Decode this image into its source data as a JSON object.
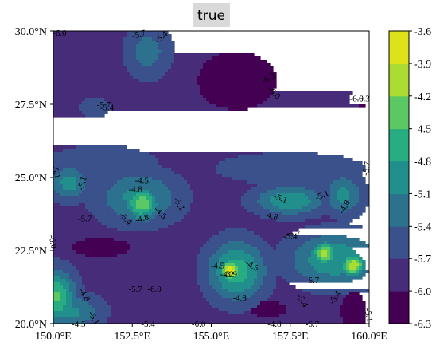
{
  "chart_data": {
    "type": "heatmap",
    "subtype": "filled-contour-map",
    "title": "true",
    "xlabel": "",
    "ylabel": "",
    "xlim": [
      150.0,
      160.0
    ],
    "ylim": [
      20.0,
      30.0
    ],
    "x_ticks": [
      150.0,
      152.5,
      155.0,
      157.5,
      160.0
    ],
    "x_tick_labels": [
      "150.0°E",
      "152.5°E",
      "155.0°E",
      "157.5°E",
      "160.0°E"
    ],
    "y_ticks": [
      20.0,
      22.5,
      25.0,
      27.5,
      30.0
    ],
    "y_tick_labels": [
      "20.0°N",
      "22.5°N",
      "25.0°N",
      "27.5°N",
      "30.0°N"
    ],
    "colorbar": {
      "levels": [
        -6.3,
        -6.0,
        -5.7,
        -5.4,
        -5.1,
        -4.8,
        -4.5,
        -4.2,
        -3.9,
        -3.6
      ],
      "tick_labels": [
        "-6.3",
        "-6.0",
        "-5.7",
        "-5.4",
        "-5.1",
        "-4.8",
        "-4.5",
        "-4.2",
        "-3.9",
        "-3.6"
      ],
      "colors": [
        "#440154",
        "#472c7a",
        "#3b518b",
        "#2c718e",
        "#21908d",
        "#27ad81",
        "#5cc863",
        "#aadc32",
        "#dde318"
      ]
    },
    "background_value": -5.85,
    "features": [
      {
        "lon": 150.1,
        "lat": 20.9,
        "value": -4.45,
        "sx": 0.6,
        "sy": 0.9
      },
      {
        "lon": 150.5,
        "lat": 20.4,
        "value": -5.0,
        "sx": 1.0,
        "sy": 0.6
      },
      {
        "lon": 152.8,
        "lat": 24.1,
        "value": -4.25,
        "sx": 0.55,
        "sy": 0.55
      },
      {
        "lon": 152.7,
        "lat": 24.3,
        "value": -5.0,
        "sx": 1.3,
        "sy": 0.9
      },
      {
        "lon": 150.5,
        "lat": 24.8,
        "value": -4.95,
        "sx": 0.6,
        "sy": 0.6
      },
      {
        "lon": 151.5,
        "lat": 25.4,
        "value": -5.45,
        "sx": 1.9,
        "sy": 0.7
      },
      {
        "lon": 155.6,
        "lat": 21.8,
        "value": -3.7,
        "sx": 0.35,
        "sy": 0.35
      },
      {
        "lon": 155.8,
        "lat": 21.8,
        "value": -4.6,
        "sx": 0.9,
        "sy": 1.0
      },
      {
        "lon": 158.6,
        "lat": 22.4,
        "value": -4.05,
        "sx": 0.4,
        "sy": 0.4
      },
      {
        "lon": 159.5,
        "lat": 22.0,
        "value": -4.0,
        "sx": 0.4,
        "sy": 0.4
      },
      {
        "lon": 158.9,
        "lat": 22.2,
        "value": -4.8,
        "sx": 1.4,
        "sy": 0.9
      },
      {
        "lon": 157.5,
        "lat": 24.2,
        "value": -4.8,
        "sx": 1.1,
        "sy": 0.5
      },
      {
        "lon": 159.2,
        "lat": 24.4,
        "value": -5.0,
        "sx": 0.6,
        "sy": 0.7
      },
      {
        "lon": 157.5,
        "lat": 25.3,
        "value": -5.5,
        "sx": 2.6,
        "sy": 0.6
      },
      {
        "lon": 153.0,
        "lat": 29.3,
        "value": -5.25,
        "sx": 0.7,
        "sy": 0.9
      },
      {
        "lon": 151.3,
        "lat": 27.4,
        "value": -5.55,
        "sx": 0.6,
        "sy": 0.4
      },
      {
        "lon": 155.8,
        "lat": 28.3,
        "value": -6.55,
        "sx": 1.0,
        "sy": 0.8
      },
      {
        "lon": 159.8,
        "lat": 27.7,
        "value": -6.3,
        "sx": 0.45,
        "sy": 0.25
      },
      {
        "lon": 151.5,
        "lat": 22.6,
        "value": -6.2,
        "sx": 1.0,
        "sy": 0.35
      },
      {
        "lon": 159.5,
        "lat": 20.4,
        "value": -6.4,
        "sx": 0.35,
        "sy": 0.6
      },
      {
        "lon": 156.8,
        "lat": 20.5,
        "value": -6.1,
        "sx": 0.8,
        "sy": 0.4
      },
      {
        "lon": 154.2,
        "lat": 20.9,
        "value": -6.0,
        "sx": 0.9,
        "sy": 0.7
      },
      {
        "lon": 155.0,
        "lat": 23.6,
        "value": -5.75,
        "sx": 0.5,
        "sy": 0.5
      }
    ],
    "contour_labels": [
      {
        "text": "-6.0",
        "lon": 150.2,
        "lat": 29.95,
        "angle": 0
      },
      {
        "text": "-5.7",
        "lon": 152.7,
        "lat": 29.9,
        "angle": 15
      },
      {
        "text": "-5.4",
        "lon": 153.4,
        "lat": 29.8,
        "angle": 40
      },
      {
        "text": "-6.3",
        "lon": 156.8,
        "lat": 28.4,
        "angle": 30
      },
      {
        "text": "-6.0",
        "lon": 157.0,
        "lat": 27.9,
        "angle": -45
      },
      {
        "text": "-5.7",
        "lon": 151.6,
        "lat": 27.5,
        "angle": 0
      },
      {
        "text": "-5.4",
        "lon": 151.7,
        "lat": 27.4,
        "angle": 0
      },
      {
        "text": "-6.0",
        "lon": 159.6,
        "lat": 27.7,
        "angle": 0
      },
      {
        "text": "-6.3",
        "lon": 159.8,
        "lat": 27.7,
        "angle": 0
      },
      {
        "text": "-5.7",
        "lon": 159.9,
        "lat": 25.3,
        "angle": 80
      },
      {
        "text": "-5.1",
        "lon": 150.1,
        "lat": 25.2,
        "angle": -70
      },
      {
        "text": "-5.1",
        "lon": 150.9,
        "lat": 24.8,
        "angle": 75
      },
      {
        "text": "-4.8",
        "lon": 152.6,
        "lat": 24.6,
        "angle": 0
      },
      {
        "text": "-4.5",
        "lon": 152.8,
        "lat": 24.9,
        "angle": 0
      },
      {
        "text": "-5.1",
        "lon": 154.0,
        "lat": 24.1,
        "angle": -60
      },
      {
        "text": "-4.5",
        "lon": 153.4,
        "lat": 23.8,
        "angle": -45
      },
      {
        "text": "-5.4",
        "lon": 152.3,
        "lat": 23.6,
        "angle": -45
      },
      {
        "text": "-4.8",
        "lon": 152.8,
        "lat": 23.6,
        "angle": 15
      },
      {
        "text": "-5.7",
        "lon": 151.0,
        "lat": 23.6,
        "angle": 0
      },
      {
        "text": "-5.1",
        "lon": 157.2,
        "lat": 24.3,
        "angle": -20
      },
      {
        "text": "-5.1",
        "lon": 158.5,
        "lat": 24.4,
        "angle": 25
      },
      {
        "text": "-4.8",
        "lon": 159.2,
        "lat": 24.0,
        "angle": 60
      },
      {
        "text": "-4.8",
        "lon": 156.9,
        "lat": 23.7,
        "angle": -15
      },
      {
        "text": "-5.4",
        "lon": 157.5,
        "lat": 23.0,
        "angle": 0
      },
      {
        "text": "-5.7",
        "lon": 157.6,
        "lat": 23.1,
        "angle": 0
      },
      {
        "text": "-6.0",
        "lon": 150.0,
        "lat": 22.8,
        "angle": -80
      },
      {
        "text": "-4.5",
        "lon": 155.2,
        "lat": 22.0,
        "angle": 0
      },
      {
        "text": "-4.5",
        "lon": 156.3,
        "lat": 22.0,
        "angle": -30
      },
      {
        "text": "-4.2",
        "lon": 155.5,
        "lat": 21.7,
        "angle": 0
      },
      {
        "text": "-3.9",
        "lon": 155.6,
        "lat": 21.7,
        "angle": 0
      },
      {
        "text": "-4.8",
        "lon": 155.9,
        "lat": 20.9,
        "angle": 0
      },
      {
        "text": "-5.7",
        "lon": 152.6,
        "lat": 21.2,
        "angle": 0
      },
      {
        "text": "-6.0",
        "lon": 153.2,
        "lat": 21.2,
        "angle": 0
      },
      {
        "text": "-5.7",
        "lon": 158.2,
        "lat": 21.5,
        "angle": 0
      },
      {
        "text": "-5.4",
        "lon": 157.9,
        "lat": 20.8,
        "angle": -60
      },
      {
        "text": "-5.4",
        "lon": 158.9,
        "lat": 20.9,
        "angle": 55
      },
      {
        "text": "-4.8",
        "lon": 151.0,
        "lat": 21.0,
        "angle": -60
      },
      {
        "text": "-4.5",
        "lon": 150.8,
        "lat": 20.0,
        "angle": 0
      },
      {
        "text": "-5.1",
        "lon": 151.3,
        "lat": 20.2,
        "angle": -60
      },
      {
        "text": "-5.4",
        "lon": 153.0,
        "lat": 20.0,
        "angle": 0
      },
      {
        "text": "-6.0",
        "lon": 154.6,
        "lat": 20.0,
        "angle": 0
      },
      {
        "text": "-4.8",
        "lon": 157.0,
        "lat": 20.0,
        "angle": 0
      },
      {
        "text": "-5.7",
        "lon": 158.2,
        "lat": 20.0,
        "angle": 0
      },
      {
        "text": "-5.1",
        "lon": 160.0,
        "lat": 20.3,
        "angle": -80
      }
    ]
  }
}
